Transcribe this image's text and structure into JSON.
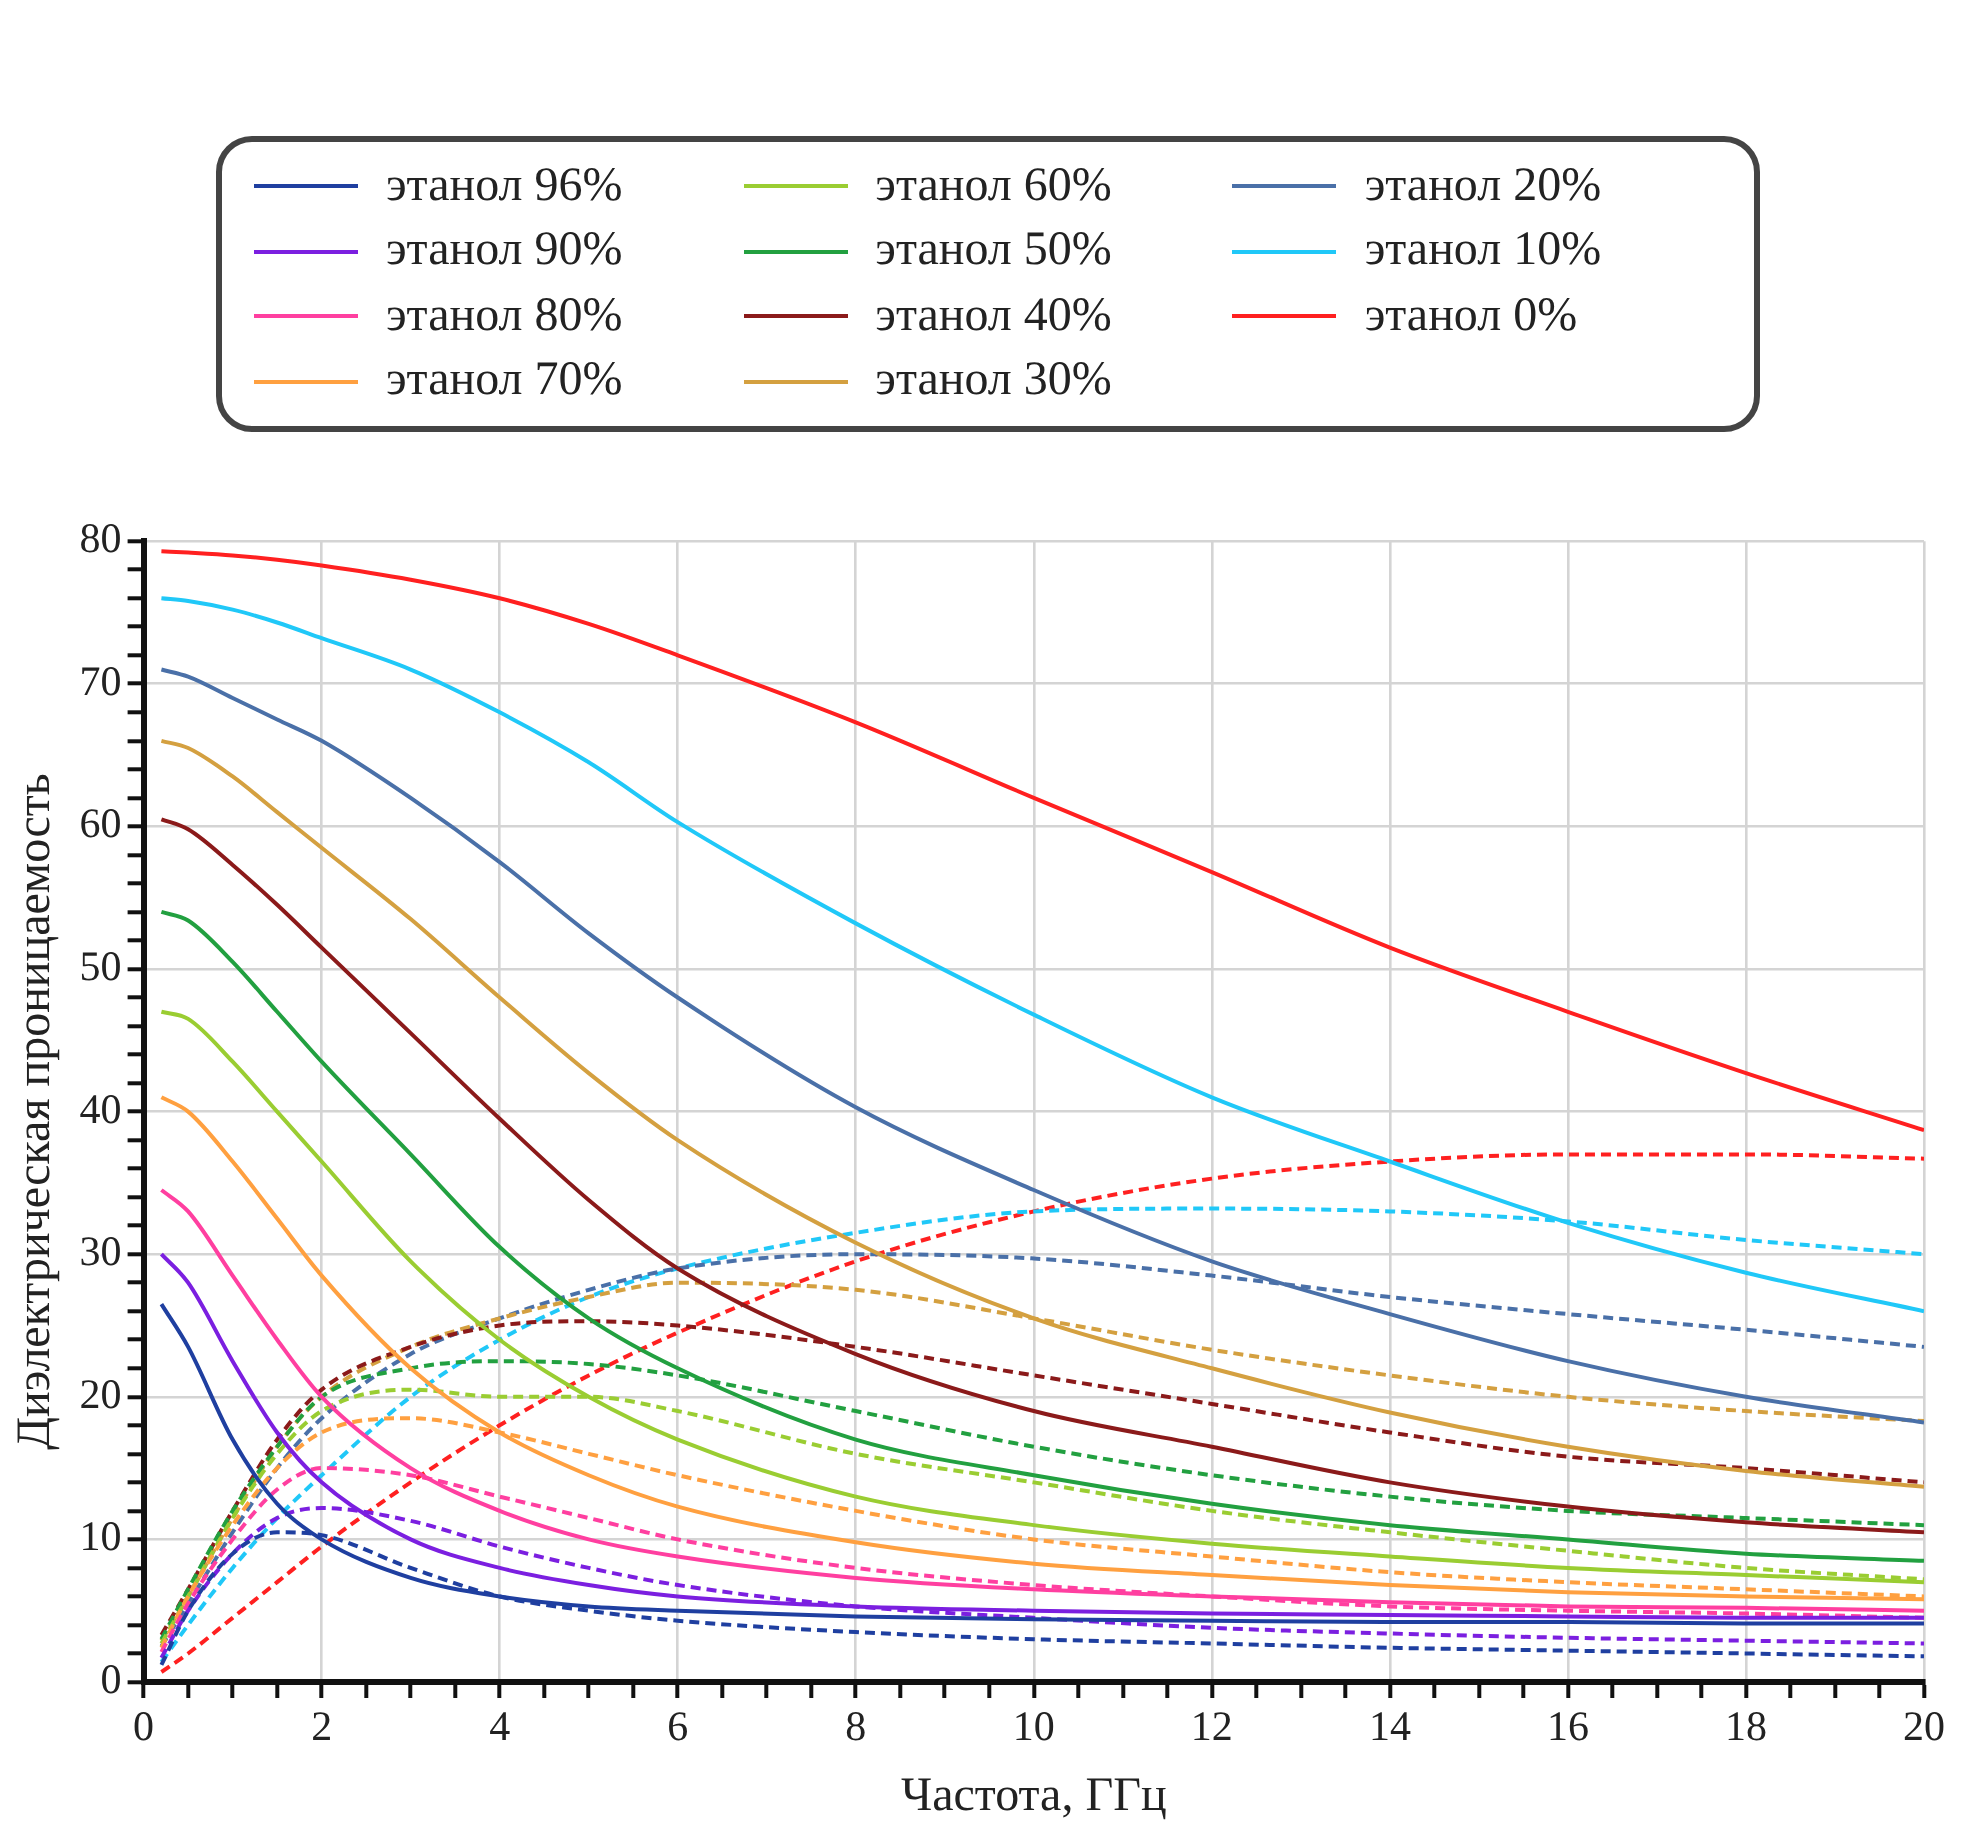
{
  "chart_data": {
    "type": "line",
    "xlabel": "Частота, ГГц",
    "ylabel": "Диэлектрическая проницаемость",
    "x": [
      0.2,
      0.5,
      1,
      1.5,
      2,
      3,
      4,
      5,
      6,
      8,
      10,
      12,
      14,
      16,
      18,
      20
    ],
    "xlim": [
      0,
      20
    ],
    "ylim": [
      0,
      80
    ],
    "xticks": [
      0,
      {
        "value": 0.5,
        "label": null
      },
      {
        "value": 1,
        "label": null
      },
      {
        "value": 1.5,
        "label": null
      },
      2,
      {
        "value": 2.5,
        "label": null
      },
      {
        "value": 3,
        "label": null
      },
      {
        "value": 3.5,
        "label": null
      },
      4,
      {
        "value": 4.5,
        "label": null
      },
      {
        "value": 5,
        "label": null
      },
      {
        "value": 5.5,
        "label": null
      },
      6,
      {
        "value": 6.5,
        "label": null
      },
      {
        "value": 7,
        "label": null
      },
      {
        "value": 7.5,
        "label": null
      },
      8,
      {
        "value": 8.5,
        "label": null
      },
      {
        "value": 9,
        "label": null
      },
      {
        "value": 9.5,
        "label": null
      },
      10,
      {
        "value": 10.5,
        "label": null
      },
      {
        "value": 11,
        "label": null
      },
      {
        "value": 11.5,
        "label": null
      },
      12,
      {
        "value": 12.5,
        "label": null
      },
      {
        "value": 13,
        "label": null
      },
      {
        "value": 13.5,
        "label": null
      },
      14,
      {
        "value": 14.5,
        "label": null
      },
      {
        "value": 15,
        "label": null
      },
      {
        "value": 15.5,
        "label": null
      },
      16,
      {
        "value": 16.5,
        "label": null
      },
      {
        "value": 17,
        "label": null
      },
      {
        "value": 17.5,
        "label": null
      },
      18,
      {
        "value": 18.5,
        "label": null
      },
      {
        "value": 19,
        "label": null
      },
      {
        "value": 19.5,
        "label": null
      },
      20
    ],
    "yticks": [
      0,
      {
        "value": 2,
        "label": null
      },
      {
        "value": 4,
        "label": null
      },
      {
        "value": 6,
        "label": null
      },
      {
        "value": 8,
        "label": null
      },
      10,
      {
        "value": 12,
        "label": null
      },
      {
        "value": 14,
        "label": null
      },
      {
        "value": 16,
        "label": null
      },
      {
        "value": 18,
        "label": null
      },
      20,
      {
        "value": 22,
        "label": null
      },
      {
        "value": 24,
        "label": null
      },
      {
        "value": 26,
        "label": null
      },
      {
        "value": 28,
        "label": null
      },
      30,
      {
        "value": 32,
        "label": null
      },
      {
        "value": 34,
        "label": null
      },
      {
        "value": 36,
        "label": null
      },
      {
        "value": 38,
        "label": null
      },
      40,
      {
        "value": 42,
        "label": null
      },
      {
        "value": 44,
        "label": null
      },
      {
        "value": 46,
        "label": null
      },
      {
        "value": 48,
        "label": null
      },
      50,
      {
        "value": 52,
        "label": null
      },
      {
        "value": 54,
        "label": null
      },
      {
        "value": 56,
        "label": null
      },
      {
        "value": 58,
        "label": null
      },
      60,
      {
        "value": 62,
        "label": null
      },
      {
        "value": 64,
        "label": null
      },
      {
        "value": 66,
        "label": null
      },
      {
        "value": 68,
        "label": null
      },
      70,
      {
        "value": 72,
        "label": null
      },
      {
        "value": 74,
        "label": null
      },
      {
        "value": 76,
        "label": null
      },
      {
        "value": 78,
        "label": null
      },
      80
    ],
    "grid": true,
    "legend": "top",
    "marker": "none",
    "line_style": "solid",
    "series": [
      {
        "name": "этанол 96%",
        "color": "#1f3fa0",
        "values": [
          26.5,
          23.5,
          17,
          12.5,
          10,
          7.3,
          6,
          5.3,
          5,
          4.6,
          4.4,
          4.3,
          4.2,
          4.2,
          4.1,
          4.1
        ]
      },
      {
        "name": "этанол 90%",
        "color": "#7b1fe0",
        "values": [
          30,
          28,
          22.5,
          17.5,
          14,
          10,
          8,
          6.8,
          6,
          5.3,
          5,
          4.8,
          4.7,
          4.6,
          4.5,
          4.5
        ]
      },
      {
        "name": "этанол 80%",
        "color": "#ff3fa0",
        "values": [
          34.5,
          33,
          28.5,
          24,
          20,
          15,
          12,
          10,
          8.8,
          7.3,
          6.5,
          6,
          5.6,
          5.3,
          5.2,
          5
        ]
      },
      {
        "name": "этанол 70%",
        "color": "#ffa040",
        "values": [
          41,
          40,
          36.5,
          32.5,
          28.5,
          22,
          17.5,
          14.5,
          12.3,
          9.8,
          8.3,
          7.5,
          6.8,
          6.3,
          6,
          5.8
        ]
      },
      {
        "name": "этанол 60%",
        "color": "#9acd32",
        "values": [
          47,
          46.5,
          43.5,
          40,
          36.5,
          29.5,
          24,
          20,
          17,
          13,
          11,
          9.7,
          8.8,
          8,
          7.5,
          7
        ]
      },
      {
        "name": "этанол 50%",
        "color": "#22a040",
        "values": [
          54,
          53.4,
          50.5,
          47,
          43.5,
          37,
          30.5,
          25.5,
          22,
          17,
          14.5,
          12.5,
          11,
          10,
          9,
          8.5
        ]
      },
      {
        "name": "этанол 40%",
        "color": "#8b1a1a",
        "values": [
          60.5,
          59.8,
          57.3,
          54.5,
          51.5,
          45.5,
          39.5,
          33.8,
          29,
          23,
          19,
          16.5,
          14,
          12.3,
          11.2,
          10.5
        ]
      },
      {
        "name": "этанол 30%",
        "color": "#d4a040",
        "values": [
          66,
          65.5,
          63.5,
          61,
          58.5,
          53.5,
          48,
          42.7,
          38,
          30.8,
          25.5,
          22,
          18.9,
          16.5,
          14.8,
          13.7
        ]
      },
      {
        "name": "этанол 20%",
        "color": "#4a70a8",
        "values": [
          71,
          70.5,
          69,
          67.5,
          66,
          62,
          57.5,
          52.5,
          48,
          40.3,
          34.5,
          29.5,
          25.8,
          22.5,
          20,
          18.2
        ]
      },
      {
        "name": "этанол 10%",
        "color": "#20c8f8",
        "values": [
          76,
          75.8,
          75.2,
          74.3,
          73.2,
          71,
          68,
          64.5,
          60.3,
          53.2,
          46.8,
          41,
          36.5,
          32.2,
          28.7,
          26
        ]
      },
      {
        "name": "этанол 0%",
        "color": "#ff2020",
        "values": [
          79.3,
          79.2,
          79,
          78.7,
          78.3,
          77.3,
          76,
          74.2,
          72,
          67.3,
          62,
          56.8,
          51.5,
          47,
          42.7,
          38.7
        ]
      },
      {
        "color": "#1f3fa0",
        "line_style": "dashed",
        "values": [
          1.2,
          5,
          9,
          10.5,
          10.3,
          8,
          6,
          5,
          4.3,
          3.5,
          3,
          2.7,
          2.4,
          2.2,
          2,
          1.8
        ]
      },
      {
        "color": "#7b1fe0",
        "line_style": "dashed",
        "values": [
          1.7,
          5,
          9,
          11.5,
          12.2,
          11.3,
          9.5,
          8,
          6.8,
          5.3,
          4.5,
          3.8,
          3.4,
          3.1,
          2.9,
          2.7
        ]
      },
      {
        "color": "#ff3fa0",
        "line_style": "dashed",
        "values": [
          2.1,
          5.5,
          10,
          13.5,
          15,
          14.5,
          13,
          11.5,
          10,
          8,
          6.8,
          6,
          5.3,
          5,
          4.8,
          4.5
        ]
      },
      {
        "color": "#ffa040",
        "line_style": "dashed",
        "values": [
          2.4,
          6,
          11,
          15,
          17.5,
          18.5,
          17.5,
          16,
          14.5,
          12,
          10,
          8.8,
          7.7,
          7,
          6.5,
          6
        ]
      },
      {
        "color": "#9acd32",
        "line_style": "dashed",
        "values": [
          2.7,
          6,
          11.5,
          16,
          19,
          20.5,
          20,
          20,
          19,
          16,
          14,
          12,
          10.5,
          9.2,
          8,
          7.2
        ]
      },
      {
        "color": "#22a040",
        "line_style": "dashed",
        "values": [
          3,
          6.5,
          12,
          16.5,
          20,
          22,
          22.5,
          22.3,
          21.5,
          19,
          16.5,
          14.5,
          13,
          12,
          11.5,
          11
        ]
      },
      {
        "color": "#8b1a1a",
        "line_style": "dashed",
        "values": [
          3.3,
          6.5,
          12,
          17,
          20.5,
          23.5,
          25,
          25.3,
          25,
          23.5,
          21.5,
          19.5,
          17.5,
          15.8,
          15,
          14
        ]
      },
      {
        "color": "#d4a040",
        "line_style": "dashed",
        "values": [
          2.9,
          6,
          11.5,
          16.5,
          20,
          23.5,
          25.5,
          27,
          28,
          27.5,
          25.5,
          23.3,
          21.5,
          20,
          19,
          18.3
        ]
      },
      {
        "color": "#4a70a8",
        "line_style": "dashed",
        "values": [
          2.5,
          5.5,
          10.5,
          15,
          18.5,
          23,
          25.5,
          27.5,
          29,
          30,
          29.7,
          28.5,
          27,
          25.8,
          24.7,
          23.5
        ]
      },
      {
        "color": "#20c8f8",
        "line_style": "dashed",
        "values": [
          1.4,
          4,
          8,
          11.5,
          14.5,
          20,
          24,
          27,
          29,
          31.5,
          33,
          33.2,
          33,
          32.3,
          31,
          30
        ]
      },
      {
        "color": "#ff2020",
        "line_style": "dashed",
        "values": [
          0.7,
          2,
          4.5,
          7,
          9.5,
          14,
          18,
          21.5,
          24.5,
          29.5,
          33,
          35.3,
          36.5,
          37,
          37,
          36.7
        ]
      }
    ]
  }
}
